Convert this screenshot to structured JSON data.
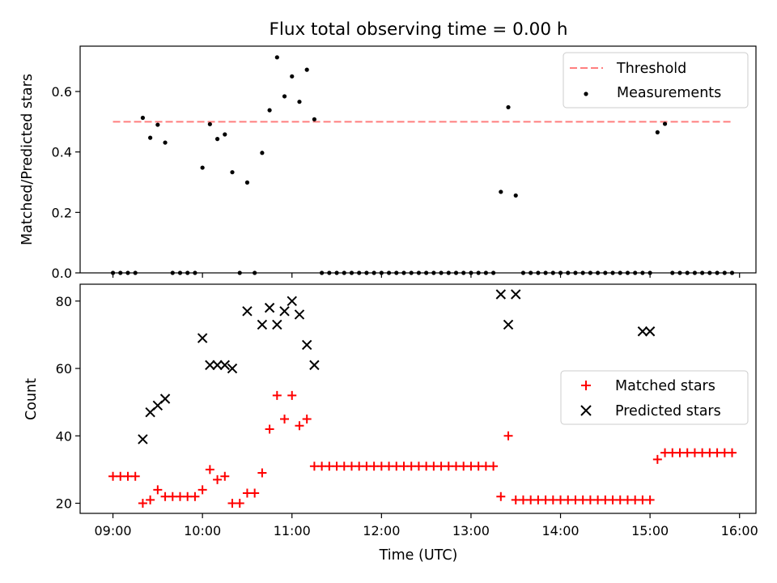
{
  "chart_data": [
    {
      "type": "scatter",
      "title": "Flux total observing time = 0.00 h",
      "ylabel": "Matched/Predicted stars",
      "xlim": [
        "08:38",
        "16:11"
      ],
      "ylim": [
        0,
        0.75
      ],
      "yticks": [
        0.0,
        0.2,
        0.4,
        0.6
      ],
      "yticklabels": [
        "0.0",
        "0.2",
        "0.4",
        "0.6"
      ],
      "legend_position": "top-right",
      "threshold": {
        "name": "Threshold",
        "value": 0.5,
        "color": "#ff7f7f"
      },
      "series": [
        {
          "name": "Measurements",
          "color": "#000000",
          "x": [
            "09:00",
            "09:05",
            "09:10",
            "09:15",
            "09:20",
            "09:25",
            "09:30",
            "09:35",
            "09:40",
            "09:45",
            "09:50",
            "09:55",
            "10:00",
            "10:05",
            "10:10",
            "10:15",
            "10:20",
            "10:25",
            "10:30",
            "10:35",
            "10:40",
            "10:45",
            "10:50",
            "10:55",
            "11:00",
            "11:05",
            "11:10",
            "11:15",
            "11:20",
            "11:25",
            "11:30",
            "11:35",
            "11:40",
            "11:45",
            "11:50",
            "11:55",
            "12:00",
            "12:05",
            "12:10",
            "12:15",
            "12:20",
            "12:25",
            "12:30",
            "12:35",
            "12:40",
            "12:45",
            "12:50",
            "12:55",
            "13:00",
            "13:05",
            "13:10",
            "13:15",
            "13:20",
            "13:25",
            "13:30",
            "13:35",
            "13:40",
            "13:45",
            "13:50",
            "13:55",
            "14:00",
            "14:05",
            "14:10",
            "14:15",
            "14:20",
            "14:25",
            "14:30",
            "14:35",
            "14:40",
            "14:45",
            "14:50",
            "14:55",
            "15:00",
            "15:05",
            "15:10",
            "15:15",
            "15:20",
            "15:25",
            "15:30",
            "15:35",
            "15:40",
            "15:45",
            "15:50",
            "15:55"
          ],
          "y": [
            0,
            0,
            0,
            0,
            0.513,
            0.447,
            0.49,
            0.431,
            0,
            0,
            0,
            0,
            0.348,
            0.492,
            0.443,
            0.458,
            0.333,
            0,
            0.299,
            0,
            0.397,
            0.538,
            0.713,
            0.584,
            0.65,
            0.566,
            0.672,
            0.508,
            0,
            0,
            0,
            0,
            0,
            0,
            0,
            0,
            0,
            0,
            0,
            0,
            0,
            0,
            0,
            0,
            0,
            0,
            0,
            0,
            0,
            0,
            0,
            0,
            0.268,
            0.548,
            0.256,
            0,
            0,
            0,
            0,
            0,
            0,
            0,
            0,
            0,
            0,
            0,
            0,
            0,
            0,
            0,
            0,
            0,
            0,
            0.465,
            0.493,
            0,
            0,
            0,
            0,
            0,
            0,
            0,
            0,
            0
          ]
        }
      ]
    },
    {
      "type": "scatter",
      "title": "",
      "xlabel": "Time (UTC)",
      "ylabel": "Count",
      "xlim": [
        "08:38",
        "16:11"
      ],
      "ylim": [
        17,
        85
      ],
      "xticks": [
        "09:00",
        "10:00",
        "11:00",
        "12:00",
        "13:00",
        "14:00",
        "15:00",
        "16:00"
      ],
      "yticks": [
        20,
        40,
        60,
        80
      ],
      "legend_position": "center-right",
      "series": [
        {
          "name": "Matched stars",
          "marker": "plus",
          "color": "#ff0000",
          "x": [
            "09:00",
            "09:05",
            "09:10",
            "09:15",
            "09:20",
            "09:25",
            "09:30",
            "09:35",
            "09:40",
            "09:45",
            "09:50",
            "09:55",
            "10:00",
            "10:05",
            "10:10",
            "10:15",
            "10:20",
            "10:25",
            "10:30",
            "10:35",
            "10:40",
            "10:45",
            "10:50",
            "10:55",
            "11:00",
            "11:05",
            "11:10",
            "11:15",
            "11:20",
            "11:25",
            "11:30",
            "11:35",
            "11:40",
            "11:45",
            "11:50",
            "11:55",
            "12:00",
            "12:05",
            "12:10",
            "12:15",
            "12:20",
            "12:25",
            "12:30",
            "12:35",
            "12:40",
            "12:45",
            "12:50",
            "12:55",
            "13:00",
            "13:05",
            "13:10",
            "13:15",
            "13:20",
            "13:25",
            "13:30",
            "13:35",
            "13:40",
            "13:45",
            "13:50",
            "13:55",
            "14:00",
            "14:05",
            "14:10",
            "14:15",
            "14:20",
            "14:25",
            "14:30",
            "14:35",
            "14:40",
            "14:45",
            "14:50",
            "14:55",
            "15:00",
            "15:05",
            "15:10",
            "15:15",
            "15:20",
            "15:25",
            "15:30",
            "15:35",
            "15:40",
            "15:45",
            "15:50",
            "15:55"
          ],
          "y": [
            28,
            28,
            28,
            28,
            20,
            21,
            24,
            22,
            22,
            22,
            22,
            22,
            24,
            30,
            27,
            28,
            20,
            20,
            23,
            23,
            29,
            42,
            52,
            45,
            52,
            43,
            45,
            31,
            31,
            31,
            31,
            31,
            31,
            31,
            31,
            31,
            31,
            31,
            31,
            31,
            31,
            31,
            31,
            31,
            31,
            31,
            31,
            31,
            31,
            31,
            31,
            31,
            22,
            40,
            21,
            21,
            21,
            21,
            21,
            21,
            21,
            21,
            21,
            21,
            21,
            21,
            21,
            21,
            21,
            21,
            21,
            21,
            21,
            33,
            35,
            35,
            35,
            35,
            35,
            35,
            35,
            35,
            35,
            35
          ]
        },
        {
          "name": "Predicted stars",
          "marker": "x",
          "color": "#000000",
          "x": [
            "09:20",
            "09:25",
            "09:30",
            "09:35",
            "10:00",
            "10:05",
            "10:10",
            "10:15",
            "10:20",
            "10:30",
            "10:40",
            "10:45",
            "10:50",
            "10:55",
            "11:00",
            "11:05",
            "11:10",
            "11:15",
            "13:20",
            "13:25",
            "13:30",
            "14:55",
            "15:00"
          ],
          "y": [
            39,
            47,
            49,
            51,
            69,
            61,
            61,
            61,
            60,
            77,
            73,
            78,
            73,
            77,
            80,
            76,
            67,
            61,
            82,
            73,
            82,
            71,
            71
          ]
        }
      ]
    }
  ]
}
